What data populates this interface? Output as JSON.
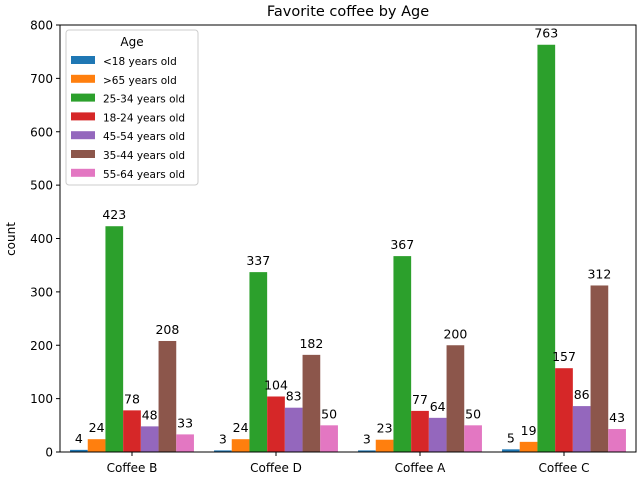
{
  "chart_data": {
    "type": "bar",
    "title": "Favorite coffee by Age",
    "xlabel": "",
    "ylabel": "count",
    "ylim": [
      0,
      800
    ],
    "yticks": [
      "0",
      "100",
      "200",
      "300",
      "400",
      "500",
      "600",
      "700",
      "800"
    ],
    "categories": [
      "Coffee B",
      "Coffee D",
      "Coffee A",
      "Coffee C"
    ],
    "legend": {
      "title": "Age",
      "placement": "top-left"
    },
    "grid": false,
    "series": [
      {
        "name": "<18 years old",
        "color": "#1f77b4",
        "values": [
          4,
          3,
          3,
          5
        ]
      },
      {
        "name": ">65 years old",
        "color": "#ff7f0e",
        "values": [
          24,
          24,
          23,
          19
        ]
      },
      {
        "name": "25-34 years old",
        "color": "#2ca02c",
        "values": [
          423,
          337,
          367,
          763
        ]
      },
      {
        "name": "18-24 years old",
        "color": "#d62728",
        "values": [
          78,
          104,
          77,
          157
        ]
      },
      {
        "name": "45-54 years old",
        "color": "#9467bd",
        "values": [
          48,
          83,
          64,
          86
        ]
      },
      {
        "name": "35-44 years old",
        "color": "#8c564b",
        "values": [
          208,
          182,
          200,
          312
        ]
      },
      {
        "name": "55-64 years old",
        "color": "#e377c2",
        "values": [
          33,
          50,
          50,
          43
        ]
      }
    ]
  }
}
